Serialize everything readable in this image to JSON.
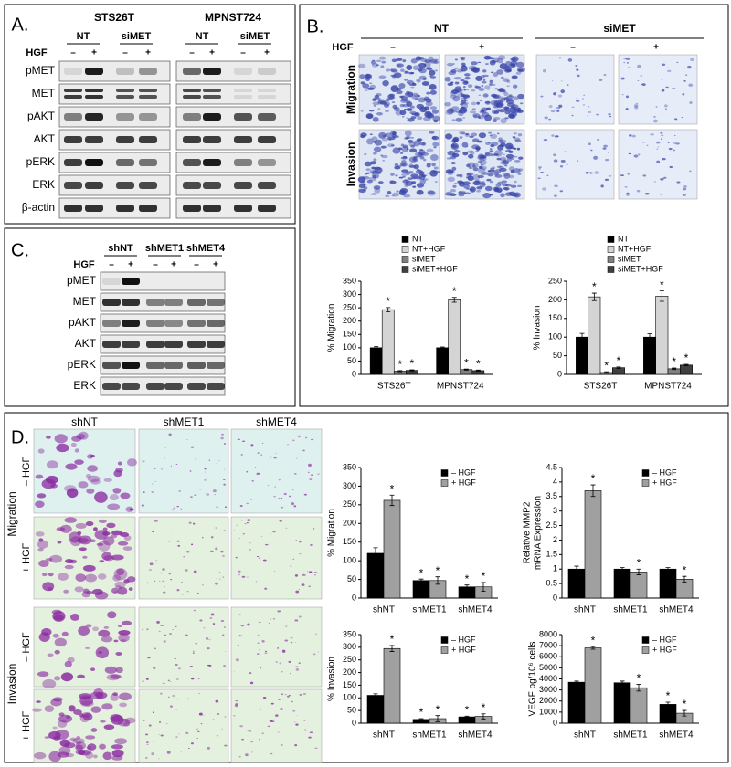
{
  "panel_a": {
    "label": "A.",
    "cell_lines": [
      "STS26T",
      "MPNST724"
    ],
    "groups": [
      "NT",
      "siMET",
      "NT",
      "siMET"
    ],
    "treatment": "HGF",
    "signs": [
      "–",
      "+",
      "–",
      "+",
      "–",
      "+",
      "–",
      "+"
    ],
    "proteins": [
      "pMET",
      "MET",
      "pAKT",
      "AKT",
      "pERK",
      "ERK",
      "β-actin"
    ]
  },
  "panel_b": {
    "label": "B.",
    "groups": [
      "NT",
      "siMET"
    ],
    "treatment": "HGF",
    "signs": [
      "–",
      "+",
      "–",
      "+"
    ],
    "assays": [
      "Migration",
      "Invasion"
    ]
  },
  "panel_c": {
    "label": "C.",
    "treatment": "HGF",
    "groups": [
      "shNT",
      "shMET1",
      "shMET4"
    ],
    "signs": [
      "–",
      "+",
      "–",
      "+",
      "–",
      "+"
    ],
    "proteins": [
      "pMET",
      "MET",
      "pAKT",
      "AKT",
      "pERK",
      "ERK"
    ]
  },
  "panel_d": {
    "label": "D.",
    "groups": [
      "shNT",
      "shMET1",
      "shMET4"
    ],
    "assays": [
      "Migration",
      "Invasion"
    ],
    "conditions": [
      "– HGF",
      "+ HGF",
      "– HGF",
      "+ HGF"
    ]
  },
  "chart_data": [
    {
      "type": "bar",
      "ylabel": [
        "% Migration"
      ],
      "categories": [
        "STS26T",
        "MPNST724"
      ],
      "legend": "top",
      "ylim": [
        0,
        350
      ],
      "yticks": [
        0,
        50,
        100,
        150,
        200,
        250,
        300,
        350
      ],
      "series": [
        {
          "name": "NT",
          "color": "#000000",
          "values": [
            100,
            100
          ],
          "errors": [
            4,
            3
          ],
          "significance": [
            null,
            null
          ]
        },
        {
          "name": "NT+HGF",
          "color": "#d4d4d4",
          "values": [
            243,
            280
          ],
          "errors": [
            8,
            9
          ],
          "significance": [
            "*",
            "*"
          ]
        },
        {
          "name": "siMET",
          "color": "#808080",
          "values": [
            12,
            18
          ],
          "errors": [
            2,
            2
          ],
          "significance": [
            "*",
            "*"
          ]
        },
        {
          "name": "siMET+HGF",
          "color": "#404040",
          "values": [
            15,
            14
          ],
          "errors": [
            2,
            2
          ],
          "significance": [
            "*",
            "*"
          ]
        }
      ]
    },
    {
      "type": "bar",
      "ylabel": [
        "% Invasion"
      ],
      "categories": [
        "STS26T",
        "MPNST724"
      ],
      "legend": "top",
      "ylim": [
        0,
        250
      ],
      "yticks": [
        0,
        50,
        100,
        150,
        200,
        250
      ],
      "series": [
        {
          "name": "NT",
          "color": "#000000",
          "values": [
            100,
            100
          ],
          "errors": [
            10,
            9
          ],
          "significance": [
            null,
            null
          ]
        },
        {
          "name": "NT+HGF",
          "color": "#d4d4d4",
          "values": [
            208,
            210
          ],
          "errors": [
            10,
            14
          ],
          "significance": [
            "*",
            "*"
          ]
        },
        {
          "name": "siMET",
          "color": "#808080",
          "values": [
            5,
            15
          ],
          "errors": [
            2,
            2
          ],
          "significance": [
            "*",
            "*"
          ]
        },
        {
          "name": "siMET+HGF",
          "color": "#404040",
          "values": [
            18,
            25
          ],
          "errors": [
            2,
            2
          ],
          "significance": [
            "*",
            "*"
          ]
        }
      ]
    },
    {
      "type": "bar",
      "ylabel": [
        "% Migration"
      ],
      "categories": [
        "shNT",
        "shMET1",
        "shMET4"
      ],
      "legend": "upper right",
      "ylim": [
        0,
        350
      ],
      "yticks": [
        0,
        50,
        100,
        150,
        200,
        250,
        300,
        350
      ],
      "series": [
        {
          "name": "– HGF",
          "color": "#000000",
          "values": [
            120,
            47,
            30
          ],
          "errors": [
            15,
            4,
            5
          ],
          "significance": [
            null,
            "*",
            "*"
          ]
        },
        {
          "name": "+ HGF",
          "color": "#a0a0a0",
          "values": [
            262,
            47,
            30
          ],
          "errors": [
            14,
            10,
            12
          ],
          "significance": [
            "*",
            "*",
            "*"
          ]
        }
      ]
    },
    {
      "type": "bar",
      "ylabel": [
        "Relative MMP2",
        "mRNA Expression"
      ],
      "categories": [
        "shNT",
        "shMET1",
        "shMET4"
      ],
      "legend": "upper right",
      "ylim": [
        0,
        4.5
      ],
      "yticks": [
        0,
        0.5,
        1,
        1.5,
        2,
        2.5,
        3,
        3.5,
        4,
        4.5
      ],
      "series": [
        {
          "name": "– HGF",
          "color": "#000000",
          "values": [
            1.0,
            1.0,
            1.0
          ],
          "errors": [
            0.1,
            0.05,
            0.05
          ],
          "significance": [
            null,
            null,
            null
          ]
        },
        {
          "name": "+ HGF",
          "color": "#a0a0a0",
          "values": [
            3.7,
            0.9,
            0.65
          ],
          "errors": [
            0.2,
            0.1,
            0.1
          ],
          "significance": [
            "*",
            "*",
            "*"
          ]
        }
      ]
    },
    {
      "type": "bar",
      "ylabel": [
        "% Invasion"
      ],
      "categories": [
        "shNT",
        "shMET1",
        "shMET4"
      ],
      "legend": "upper right",
      "ylim": [
        0,
        350
      ],
      "yticks": [
        0,
        50,
        100,
        150,
        200,
        250,
        300,
        350
      ],
      "series": [
        {
          "name": "– HGF",
          "color": "#000000",
          "values": [
            110,
            15,
            25
          ],
          "errors": [
            6,
            3,
            3
          ],
          "significance": [
            null,
            "*",
            "*"
          ]
        },
        {
          "name": "+ HGF",
          "color": "#a0a0a0",
          "values": [
            295,
            18,
            27
          ],
          "errors": [
            12,
            12,
            10
          ],
          "significance": [
            "*",
            "*",
            "*"
          ]
        }
      ]
    },
    {
      "type": "bar",
      "ylabel": [
        "VEGF pg/10⁶ cells"
      ],
      "categories": [
        "shNT",
        "shMET1",
        "shMET4"
      ],
      "legend": "upper right",
      "ylim": [
        0,
        8000
      ],
      "yticks": [
        0,
        1000,
        2000,
        3000,
        4000,
        5000,
        6000,
        7000,
        8000
      ],
      "series": [
        {
          "name": "– HGF",
          "color": "#000000",
          "values": [
            3700,
            3650,
            1700
          ],
          "errors": [
            100,
            150,
            200
          ],
          "significance": [
            null,
            null,
            "*"
          ]
        },
        {
          "name": "+ HGF",
          "color": "#a0a0a0",
          "values": [
            6800,
            3200,
            900
          ],
          "errors": [
            120,
            300,
            250
          ],
          "significance": [
            "*",
            "*",
            "*"
          ]
        }
      ]
    }
  ]
}
